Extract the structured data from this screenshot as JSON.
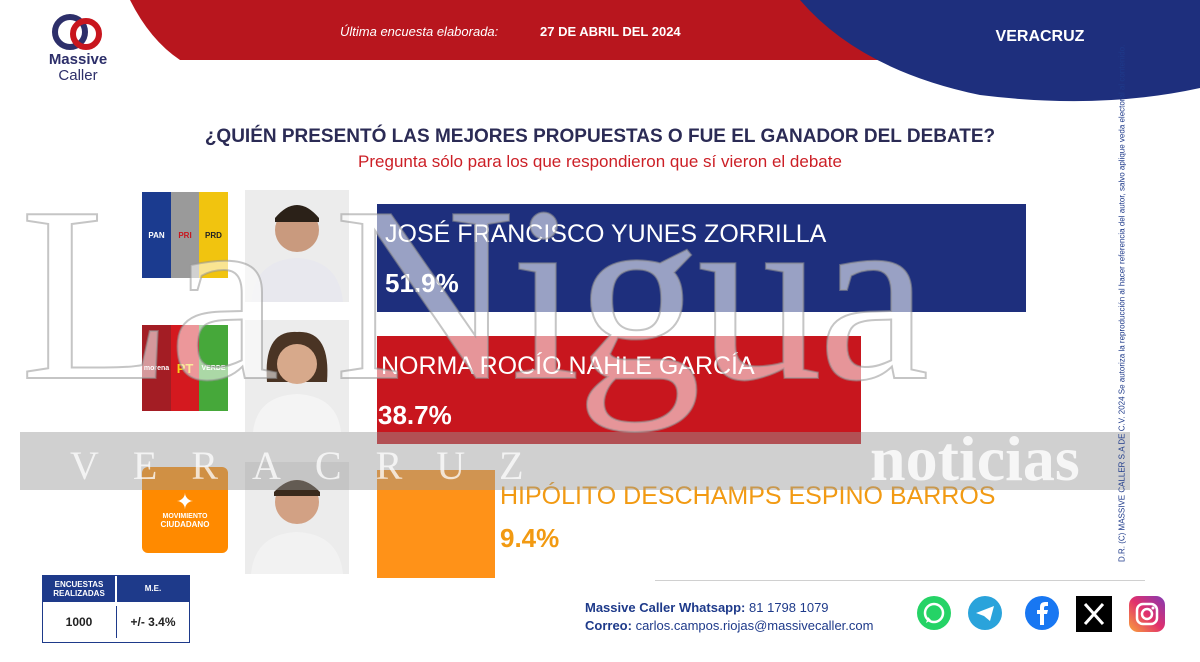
{
  "header": {
    "brand_line1": "Massive",
    "brand_line2": "Caller",
    "survey_label": "Última encuesta elaborada:",
    "survey_date": "27 DE ABRIL DEL 2024",
    "state": "VERACRUZ"
  },
  "question": "¿QUIÉN PRESENTÓ LAS MEJORES PROPUESTAS O FUE EL GANADOR DEL DEBATE?",
  "subquestion": "Pregunta sólo para los que respondieron que sí vieron el debate",
  "parties": {
    "pan": "PAN",
    "pri": "PRI",
    "prd": "PRD",
    "morena": "morena",
    "pt": "PT",
    "verde": "VERDE",
    "mc_line1": "MOVIMIENTO",
    "mc_line2": "CIUDADANO"
  },
  "chart_data": {
    "type": "bar",
    "categories": [
      "JOSÉ FRANCISCO YUNES ZORRILLA",
      "NORMA ROCÍO NAHLE GARCÍA",
      "HIPÓLITO DESCHAMPS ESPINO BARROS"
    ],
    "values": [
      51.9,
      38.7,
      9.4
    ],
    "value_labels": [
      "51.9%",
      "38.7%",
      "9.4%"
    ],
    "colors": [
      "#1e2f7d",
      "#c8161e",
      "#ff9218"
    ],
    "xlim": [
      0,
      100
    ]
  },
  "stats": {
    "col1_line1": "ENCUESTAS",
    "col1_line2": "REALIZADAS",
    "col2": "M.E.",
    "col1_value": "1000",
    "col2_value": "+/- 3.4%"
  },
  "contact": {
    "whatsapp_label": "Massive Caller Whatsapp:",
    "whatsapp": "81 1798 1079",
    "email_label": "Correo:",
    "email": "carlos.campos.riojas@massivecaller.com"
  },
  "credit": "D.R. (C) MASSIVE CALLER S.A DE C.V. 2024 Se autoriza la reproducción al hacer referencia del autor, salvo aplique veda electoral al contenido.",
  "watermark": {
    "main": "La Nigua",
    "sub": "VERACRUZ",
    "side": "noticias"
  },
  "social_icons": [
    "whatsapp-icon",
    "telegram-icon",
    "facebook-icon",
    "x-icon",
    "instagram-icon"
  ]
}
